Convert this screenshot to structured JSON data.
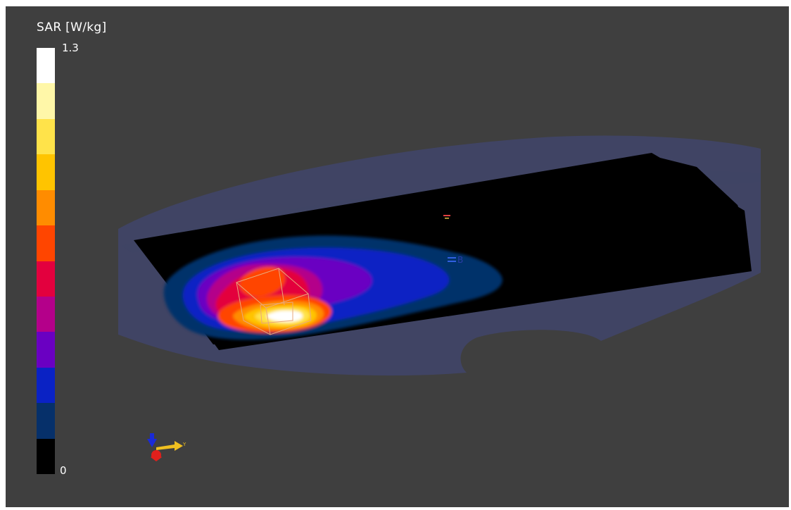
{
  "legend": {
    "title": "SAR [W/kg]",
    "max_label": "1.3",
    "min_label": "0",
    "colors_top_to_bottom": [
      "#ffffff",
      "#fff7a8",
      "#ffe34a",
      "#ffc400",
      "#ff8c00",
      "#ff4500",
      "#e3003e",
      "#b4008a",
      "#6a00c2",
      "#0a22c4",
      "#06306a",
      "#000000"
    ]
  },
  "scene": {
    "phantom_color": "#404464",
    "plane_color": "#000000",
    "contour_colors_outer_to_inner": [
      "#06306a",
      "#0a22c4",
      "#6a00c2",
      "#b4008a",
      "#e3003e",
      "#ff4500",
      "#ff8c00",
      "#ffc400",
      "#ffe34a",
      "#ffffff"
    ],
    "probe_box_color": "#e8a87c",
    "marker_label": "B"
  },
  "axes_triad": {
    "y_label": "Y",
    "x_color": "#e0201c",
    "y_color": "#f0c020",
    "z_color": "#1a2ad8"
  }
}
